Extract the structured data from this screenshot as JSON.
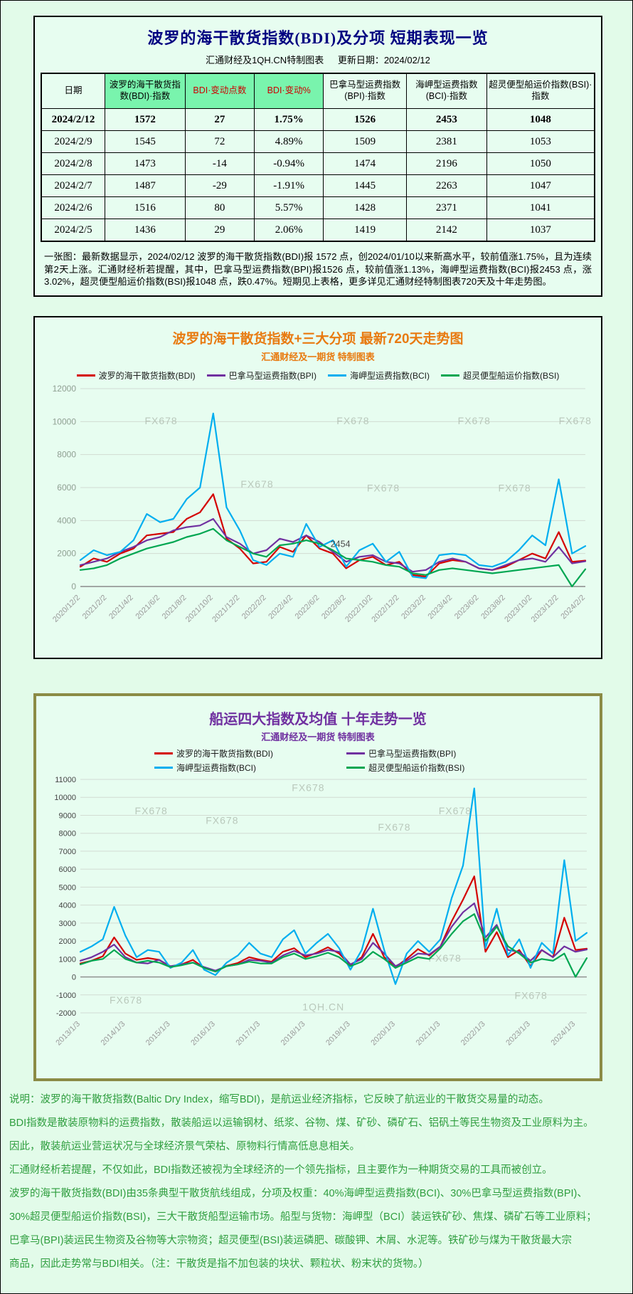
{
  "colors": {
    "bdi_red": "#d40000",
    "bpi_purple": "#7030a0",
    "bci_blue": "#00aeef",
    "bsi_green": "#00a651",
    "title_navy": "#000080",
    "accent_orange": "#e87a10",
    "accent_purple": "#7030a0",
    "header_highlight_green": "#79f4ad",
    "footer_green": "#2f9e3f",
    "box3_border_olive": "#8b8b45"
  },
  "section1": {
    "title": "波罗的海干散货指数(BDI)及分项  短期表现一览",
    "source": "汇通财经及1QH.CN特制图表",
    "updated": "更新日期：2024/02/12",
    "table": {
      "headers": [
        "日期",
        "波罗的海干散货指数(BDI)·指数",
        "BDI·变动点数",
        "BDI·变动%",
        "巴拿马型运费指数(BPI)·指数",
        "海岬型运费指数(BCI)·指数",
        "超灵便型船运价指数(BSI)·指数"
      ],
      "highlight_cols": [
        1,
        2,
        3
      ],
      "red_cols": [
        2,
        3
      ],
      "col_widths": [
        "11.5%",
        "14.5%",
        "12.5%",
        "12.5%",
        "15%",
        "14.5%",
        "19.5%"
      ],
      "rows": [
        [
          "2024/2/12",
          "1572",
          "27",
          "1.75%",
          "1526",
          "2453",
          "1048"
        ],
        [
          "2024/2/9",
          "1545",
          "72",
          "4.89%",
          "1509",
          "2381",
          "1053"
        ],
        [
          "2024/2/8",
          "1473",
          "-14",
          "-0.94%",
          "1474",
          "2196",
          "1050"
        ],
        [
          "2024/2/7",
          "1487",
          "-29",
          "-1.91%",
          "1445",
          "2263",
          "1047"
        ],
        [
          "2024/2/6",
          "1516",
          "80",
          "5.57%",
          "1428",
          "2371",
          "1041"
        ],
        [
          "2024/2/5",
          "1436",
          "29",
          "2.06%",
          "1419",
          "2142",
          "1037"
        ]
      ]
    },
    "note": "一张图：最新数据显示，2024/02/12 波罗的海干散货指数(BDI)报 1572 点，创2024/01/10以来新高水平，较前值涨1.75%，且为连续第2天上涨。汇通财经析若提醒，其中，巴拿马型运费指数(BPI)报1526 点，较前值涨1.13%，海岬型运费指数(BCI)报2453 点，涨3.02%，超灵便型船运价指数(BSI)报1048 点，跌0.47%。短期见上表格，更多详见汇通财经特制图表720天及十年走势图。"
  },
  "section2": {
    "title": "波罗的海干散货指数+三大分项  最新720天走势图",
    "subtitle": "汇通财经及一期货  特制图表"
  },
  "section3": {
    "title": "船运四大指数及均值 十年走势一览",
    "subtitle": "汇通财经及一期货 特制图表"
  },
  "footer": {
    "lines": [
      "说明：波罗的海干散货指数(Baltic Dry Index，缩写BDI)，是航运业经济指标，它反映了航运业的干散货交易量的动态。",
      "BDI指数是散装原物料的运费指数，散装船运以运输钢材、纸浆、谷物、煤、矿砂、磷矿石、铝矾土等民生物资及工业原料为主。",
      "因此，散装航运业营运状况与全球经济景气荣枯、原物料行情高低息息相关。",
      "汇通财经析若提醒，不仅如此，BDI指数还被视为全球经济的一个领先指标，且主要作为一种期货交易的工具而被创立。",
      "波罗的海干散货指数(BDI)由35条典型干散货航线组成，分项及权重：40%海岬型运费指数(BCI)、30%巴拿马型运费指数(BPI)、",
      "30%超灵便型船运价指数(BSI)，三大干散货船型运输市场。船型与货物：海岬型（BCI）装运铁矿砂、焦煤、磷矿石等工业原料；",
      "巴拿马(BPI)装运民生物资及谷物等大宗物资；超灵便型(BSI)装运磷肥、碳酸钾、木屑、水泥等。铁矿砂与煤为干散货最大宗",
      "商品，因此走势常与BDI相关。（注：干散货是指不加包装的块状、颗粒状、粉末状的货物。）"
    ]
  },
  "chart_data": [
    {
      "type": "line",
      "title": "波罗的海干散货指数+三大分项 最新720天走势图",
      "ylim": [
        0,
        12000
      ],
      "ystep": 2000,
      "grid": true,
      "legend_position": "top",
      "tick_step": 2,
      "xticklabels": [
        "2020/12/2",
        "2021/2/2",
        "2021/4/2",
        "2021/6/2",
        "2021/8/2",
        "2021/10/2",
        "2021/12/2",
        "2022/2/2",
        "2022/4/2",
        "2022/6/2",
        "2022/8/2",
        "2022/10/2",
        "2022/12/2",
        "2023/2/2",
        "2023/4/2",
        "2023/6/2",
        "2023/8/2",
        "2023/10/2",
        "2023/12/2",
        "2024/2/2"
      ],
      "series": [
        {
          "name": "波罗的海干散货指数(BDI)",
          "color": "#d40000",
          "values": [
            1200,
            1700,
            1500,
            2000,
            2300,
            3100,
            3200,
            3300,
            4100,
            4500,
            5600,
            2900,
            2300,
            1400,
            1500,
            2400,
            2100,
            3100,
            2300,
            2000,
            1100,
            1600,
            1800,
            1300,
            1500,
            700,
            600,
            1400,
            1600,
            1500,
            1100,
            1000,
            1200,
            1600,
            2000,
            1700,
            3300,
            1500,
            1572
          ]
        },
        {
          "name": "巴拿马型运费指数(BPI)",
          "color": "#7030a0",
          "values": [
            1300,
            1500,
            1700,
            2100,
            2400,
            2800,
            3000,
            3400,
            3600,
            3700,
            4100,
            3000,
            2600,
            2000,
            2200,
            2900,
            2700,
            3100,
            2700,
            2100,
            1500,
            1800,
            1900,
            1500,
            1400,
            900,
            1000,
            1500,
            1700,
            1500,
            1100,
            1000,
            1300,
            1600,
            1700,
            1500,
            2400,
            1400,
            1526
          ]
        },
        {
          "name": "海岬型运费指数(BCI)",
          "color": "#00aeef",
          "values": [
            1600,
            2200,
            1900,
            2100,
            2800,
            4400,
            3900,
            4100,
            5300,
            6000,
            10500,
            4800,
            3400,
            1600,
            1300,
            2000,
            1800,
            3800,
            2400,
            2800,
            1200,
            2200,
            2600,
            1500,
            2100,
            600,
            500,
            1900,
            2000,
            1900,
            1300,
            1200,
            1500,
            2200,
            3100,
            2500,
            6500,
            2000,
            2453
          ]
        },
        {
          "name": "超灵便型船运价指数(BSI)",
          "color": "#00a651",
          "values": [
            1000,
            1100,
            1300,
            1700,
            2000,
            2300,
            2500,
            2700,
            3000,
            3200,
            3500,
            2800,
            2400,
            2000,
            1800,
            2500,
            2600,
            2800,
            2600,
            2200,
            1700,
            1600,
            1500,
            1300,
            1200,
            800,
            700,
            1000,
            1100,
            1000,
            900,
            800,
            900,
            1000,
            1100,
            1200,
            1300,
            0,
            1048
          ]
        }
      ],
      "watermarks": [
        {
          "x": 0.16,
          "y": 0.18,
          "t": "FX678"
        },
        {
          "x": 0.54,
          "y": 0.18,
          "t": "FX678"
        },
        {
          "x": 0.78,
          "y": 0.18,
          "t": "FX678"
        },
        {
          "x": 0.98,
          "y": 0.18,
          "t": "FX678"
        },
        {
          "x": 0.35,
          "y": 0.5,
          "t": "FX678"
        },
        {
          "x": 0.6,
          "y": 0.52,
          "t": "FX678"
        },
        {
          "x": 0.86,
          "y": 0.52,
          "t": "FX678"
        }
      ],
      "annotations": [
        {
          "x": 0.515,
          "y": 0.8,
          "t": "2454"
        }
      ]
    },
    {
      "type": "line",
      "title": "船运四大指数及均值 十年走势一览",
      "ylim": [
        -2000,
        11000
      ],
      "ystep": 1000,
      "grid": true,
      "legend_position": "top",
      "tick_step": 4,
      "xticklabels": [
        "2013/1/3",
        "2014/1/3",
        "2015/1/3",
        "2016/1/3",
        "2017/1/3",
        "2018/1/3",
        "2019/1/3",
        "2020/1/3",
        "2021/1/3",
        "2022/1/3",
        "2023/1/3",
        "2024/1/3"
      ],
      "series": [
        {
          "name": "波罗的海干散货指数(BDI)",
          "color": "#d40000",
          "values": [
            750,
            900,
            1150,
            2200,
            1300,
            950,
            1050,
            950,
            550,
            700,
            950,
            500,
            300,
            620,
            780,
            1100,
            950,
            850,
            1400,
            1600,
            1100,
            1350,
            1650,
            1300,
            650,
            1100,
            2400,
            1100,
            550,
            1000,
            1550,
            1200,
            1700,
            3100,
            4300,
            5600,
            1400,
            2500,
            1100,
            1500,
            600,
            1500,
            1100,
            3300,
            1500,
            1572
          ]
        },
        {
          "name": "巴拿马型运费指数(BPI)",
          "color": "#7030a0",
          "values": [
            900,
            1100,
            1400,
            1800,
            1100,
            800,
            750,
            950,
            600,
            700,
            800,
            550,
            350,
            600,
            700,
            950,
            900,
            800,
            1200,
            1450,
            1200,
            1300,
            1500,
            1400,
            700,
            1000,
            1900,
            1300,
            600,
            900,
            1300,
            1250,
            1700,
            2800,
            3600,
            4100,
            2200,
            2900,
            1500,
            1400,
            900,
            1500,
            1100,
            1700,
            1400,
            1526
          ]
        },
        {
          "name": "海岬型运费指数(BCI)",
          "color": "#00aeef",
          "values": [
            1400,
            1700,
            2100,
            3900,
            2300,
            1100,
            1500,
            1400,
            500,
            800,
            1500,
            400,
            100,
            800,
            1200,
            1900,
            1300,
            1100,
            2100,
            2600,
            1300,
            1900,
            2400,
            1600,
            400,
            1500,
            3800,
            1500,
            -400,
            1300,
            2000,
            1400,
            2100,
            4400,
            6200,
            10500,
            1600,
            3800,
            1200,
            2100,
            500,
            1900,
            1300,
            6500,
            2000,
            2453
          ]
        },
        {
          "name": "超灵便型船运价指数(BSI)",
          "color": "#00a651",
          "values": [
            700,
            900,
            1000,
            1500,
            1000,
            800,
            900,
            800,
            550,
            650,
            800,
            500,
            300,
            600,
            700,
            850,
            750,
            750,
            1100,
            1300,
            1000,
            1150,
            1350,
            1100,
            600,
            850,
            1400,
            1000,
            500,
            800,
            1100,
            1000,
            1600,
            2400,
            3100,
            3500,
            2000,
            2800,
            1700,
            1300,
            800,
            1000,
            900,
            1300,
            0,
            1048
          ]
        }
      ],
      "watermarks": [
        {
          "x": 0.45,
          "y": 0.05,
          "t": "FX678"
        },
        {
          "x": 0.14,
          "y": 0.15,
          "t": "FX678"
        },
        {
          "x": 0.28,
          "y": 0.19,
          "t": "FX678"
        },
        {
          "x": 0.74,
          "y": 0.15,
          "t": "FX678"
        },
        {
          "x": 0.62,
          "y": 0.22,
          "t": "FX678"
        },
        {
          "x": 0.72,
          "y": 0.78,
          "t": "FX678"
        },
        {
          "x": 0.09,
          "y": 0.96,
          "t": "FX678"
        },
        {
          "x": 0.89,
          "y": 0.94,
          "t": "FX678"
        },
        {
          "x": 0.48,
          "y": 0.99,
          "t": "1QH.CN"
        }
      ],
      "annotations": []
    }
  ]
}
